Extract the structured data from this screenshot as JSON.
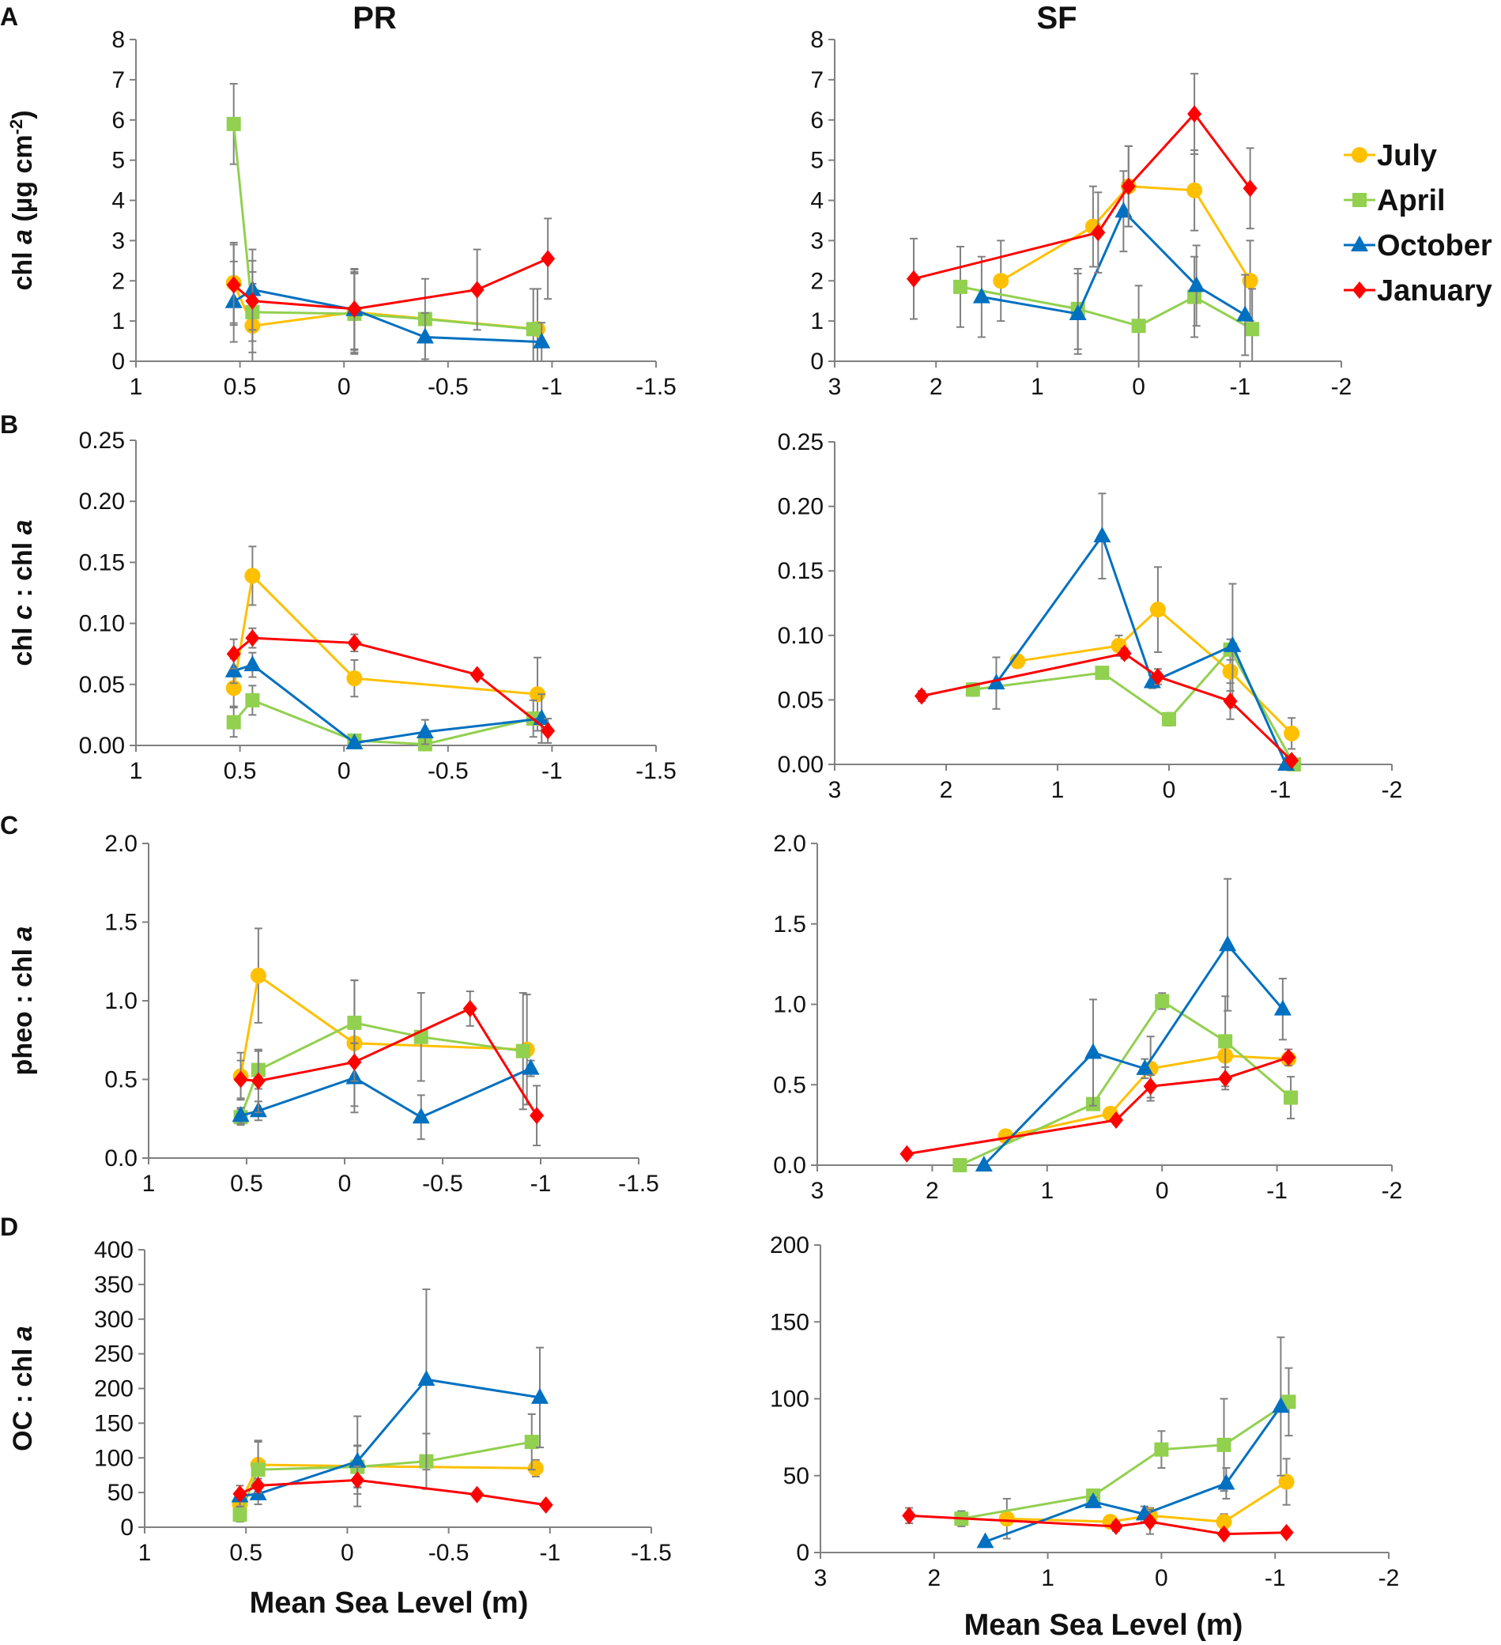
{
  "column_titles": [
    "PR",
    "SF"
  ],
  "panel_letters": [
    "A",
    "B",
    "C",
    "D"
  ],
  "x_axis_label": "Mean Sea Level (m)",
  "series_order": [
    "July",
    "April",
    "October",
    "January"
  ],
  "series_styles": {
    "July": {
      "color": "#FFC000",
      "marker": "circle"
    },
    "April": {
      "color": "#92D050",
      "marker": "square"
    },
    "October": {
      "color": "#0070C0",
      "marker": "triangle"
    },
    "January": {
      "color": "#FF0000",
      "marker": "diamond"
    }
  },
  "colors": {
    "errorbar": "#808080",
    "axis": "#808080",
    "text": "#111111"
  },
  "chart_data": [
    {
      "id": "A-PR",
      "type": "line",
      "row": "A",
      "site": "PR",
      "ylabel": "chl a (µg cm⁻²)",
      "ylabel_parts": [
        {
          "t": "chl "
        },
        {
          "t": "a",
          "i": true
        },
        {
          "t": " (µg cm"
        },
        {
          "t": "-2",
          "sup": true
        },
        {
          "t": ")"
        }
      ],
      "xlim": [
        1,
        -1.5
      ],
      "xticks": [
        1,
        0.5,
        0,
        -0.5,
        -1,
        -1.5
      ],
      "xticklabels": [
        "1",
        "0.5",
        "0",
        "-0.5",
        "-1",
        "-1.5"
      ],
      "ylim": [
        0,
        8
      ],
      "yticks": [
        0,
        1,
        2,
        3,
        4,
        5,
        6,
        7,
        8
      ],
      "yticklabels": [
        "0",
        "1",
        "2",
        "3",
        "4",
        "5",
        "6",
        "7",
        "8"
      ],
      "series": [
        {
          "name": "July",
          "x": [
            0.53,
            0.44,
            -0.05,
            -0.93
          ],
          "y": [
            1.95,
            0.88,
            1.22,
            0.8
          ],
          "err": [
            1.0,
            1.05,
            1.0,
            1.0
          ]
        },
        {
          "name": "April",
          "x": [
            0.53,
            0.44,
            -0.05,
            -0.39,
            -0.91
          ],
          "y": [
            5.9,
            1.22,
            1.18,
            1.05,
            0.8
          ],
          "err": [
            1.0,
            1.0,
            1.0,
            1.0,
            1.0
          ]
        },
        {
          "name": "October",
          "x": [
            0.53,
            0.44,
            -0.05,
            -0.39,
            -0.95
          ],
          "y": [
            1.48,
            1.78,
            1.28,
            0.6,
            0.48
          ],
          "err": [
            1.0,
            1.0,
            1.0,
            0.6,
            0.48
          ]
        },
        {
          "name": "January",
          "x": [
            0.53,
            0.44,
            -0.05,
            -0.64,
            -0.98
          ],
          "y": [
            1.9,
            1.5,
            1.3,
            1.78,
            2.55
          ],
          "err": [
            1.0,
            1.0,
            1.0,
            1.0,
            1.0
          ]
        }
      ]
    },
    {
      "id": "A-SF",
      "type": "line",
      "row": "A",
      "site": "SF",
      "xlim": [
        3,
        -2
      ],
      "xticks": [
        3,
        2,
        1,
        0,
        -1,
        -2
      ],
      "xticklabels": [
        "3",
        "2",
        "1",
        "0",
        "-1",
        "-2"
      ],
      "ylim": [
        0,
        8
      ],
      "yticks": [
        0,
        1,
        2,
        3,
        4,
        5,
        6,
        7,
        8
      ],
      "yticklabels": [
        "0",
        "1",
        "2",
        "3",
        "4",
        "5",
        "6",
        "7",
        "8"
      ],
      "series": [
        {
          "name": "July",
          "x": [
            1.36,
            0.45,
            0.1,
            -0.55,
            -1.1
          ],
          "y": [
            2.0,
            3.35,
            4.35,
            4.25,
            2.0
          ],
          "err": [
            1.0,
            1.0,
            1.0,
            1.0,
            1.0
          ]
        },
        {
          "name": "April",
          "x": [
            1.76,
            0.6,
            0.0,
            -0.55,
            -1.12
          ],
          "y": [
            1.85,
            1.3,
            0.88,
            1.6,
            0.8
          ],
          "err": [
            1.0,
            1.0,
            1.0,
            1.0,
            1.0
          ]
        },
        {
          "name": "October",
          "x": [
            1.55,
            0.6,
            0.15,
            -0.57,
            -1.05
          ],
          "y": [
            1.6,
            1.18,
            3.73,
            1.88,
            1.15
          ],
          "err": [
            1.0,
            1.0,
            1.0,
            1.0,
            1.0
          ]
        },
        {
          "name": "January",
          "x": [
            2.22,
            0.4,
            0.1,
            -0.55,
            -1.1
          ],
          "y": [
            2.05,
            3.2,
            4.35,
            6.15,
            4.3
          ],
          "err": [
            1.0,
            1.0,
            1.0,
            1.0,
            1.0
          ]
        }
      ]
    },
    {
      "id": "B-PR",
      "type": "line",
      "row": "B",
      "site": "PR",
      "ylabel": "chl c : chl a",
      "ylabel_parts": [
        {
          "t": "chl "
        },
        {
          "t": "c",
          "i": true
        },
        {
          "t": " : chl "
        },
        {
          "t": "a",
          "i": true
        }
      ],
      "xlim": [
        1,
        -1.5
      ],
      "xticks": [
        1,
        0.5,
        0,
        -0.5,
        -1,
        -1.5
      ],
      "xticklabels": [
        "1",
        "0.5",
        "0",
        "-0.5",
        "-1",
        "-1.5"
      ],
      "ylim": [
        0,
        0.25
      ],
      "yticks": [
        0,
        0.05,
        0.1,
        0.15,
        0.2,
        0.25
      ],
      "yticklabels": [
        "0.00",
        "0.05",
        "0.10",
        "0.15",
        "0.20",
        "0.25"
      ],
      "series": [
        {
          "name": "July",
          "x": [
            0.53,
            0.44,
            -0.05,
            -0.93
          ],
          "y": [
            0.047,
            0.139,
            0.055,
            0.042
          ],
          "err": [
            0.015,
            0.024,
            0.015,
            0.03
          ]
        },
        {
          "name": "April",
          "x": [
            0.53,
            0.44,
            -0.05,
            -0.39,
            -0.91
          ],
          "y": [
            0.019,
            0.037,
            0.004,
            0.001,
            0.022
          ],
          "err": [
            0.012,
            0.012,
            0.004,
            0.001,
            0.015
          ]
        },
        {
          "name": "October",
          "x": [
            0.53,
            0.44,
            -0.05,
            -0.39,
            -0.95
          ],
          "y": [
            0.061,
            0.066,
            0.002,
            0.011,
            0.022
          ],
          "err": [
            0.01,
            0.01,
            0.002,
            0.01,
            0.02
          ]
        },
        {
          "name": "January",
          "x": [
            0.53,
            0.44,
            -0.05,
            -0.64,
            -0.98
          ],
          "y": [
            0.075,
            0.088,
            0.084,
            0.058,
            0.012
          ],
          "err": [
            0.012,
            0.008,
            0.007,
            0.002,
            0.01
          ]
        }
      ]
    },
    {
      "id": "B-SF",
      "type": "line",
      "row": "B",
      "site": "SF",
      "xlim": [
        3,
        -2
      ],
      "xticks": [
        3,
        2,
        1,
        0,
        -1,
        -2
      ],
      "xticklabels": [
        "3",
        "2",
        "1",
        "0",
        "-1",
        "-2"
      ],
      "ylim": [
        0,
        0.25
      ],
      "yticks": [
        0,
        0.05,
        0.1,
        0.15,
        0.2,
        0.25
      ],
      "yticklabels": [
        "0.00",
        "0.05",
        "0.10",
        "0.15",
        "0.20",
        "0.25"
      ],
      "series": [
        {
          "name": "July",
          "x": [
            1.36,
            0.45,
            0.1,
            -0.55,
            -1.1
          ],
          "y": [
            0.08,
            0.092,
            0.12,
            0.072,
            0.024
          ],
          "err": [
            0.005,
            0.008,
            0.033,
            0.015,
            0.012
          ]
        },
        {
          "name": "April",
          "x": [
            1.76,
            0.6,
            0.0,
            -0.55,
            -1.12
          ],
          "y": [
            0.058,
            0.071,
            0.035,
            0.089,
            0.0
          ],
          "err": [
            0.005,
            0.004,
            0.005,
            0.008,
            0.002
          ]
        },
        {
          "name": "October",
          "x": [
            1.55,
            0.6,
            0.15,
            -0.57,
            -1.05
          ],
          "y": [
            0.063,
            0.177,
            0.064,
            0.092,
            0.0
          ],
          "err": [
            0.02,
            0.033,
            0.005,
            0.048,
            0.002
          ]
        },
        {
          "name": "January",
          "x": [
            2.22,
            0.4,
            0.1,
            -0.55,
            -1.1
          ],
          "y": [
            0.053,
            0.086,
            0.068,
            0.049,
            0.003
          ],
          "err": [
            0.004,
            0.004,
            0.006,
            0.014,
            0.003
          ]
        }
      ]
    },
    {
      "id": "C-PR",
      "type": "line",
      "row": "C",
      "site": "PR",
      "ylabel": "pheo : chl a",
      "ylabel_parts": [
        {
          "t": "pheo : chl "
        },
        {
          "t": "a",
          "i": true
        }
      ],
      "xlim": [
        1,
        -1.5
      ],
      "xticks": [
        1,
        0.5,
        0,
        -0.5,
        -1,
        -1.5
      ],
      "xticklabels": [
        "1",
        "0.5",
        "0",
        "-0.5",
        "-1",
        "-1.5"
      ],
      "ylim": [
        0,
        2
      ],
      "yticks": [
        0,
        0.5,
        1,
        1.5,
        2
      ],
      "yticklabels": [
        "0.0",
        "0.5",
        "1.0",
        "1.5",
        "2.0"
      ],
      "series": [
        {
          "name": "July",
          "x": [
            0.53,
            0.44,
            -0.05,
            -0.93
          ],
          "y": [
            0.52,
            1.16,
            0.73,
            0.69
          ],
          "err": [
            0.15,
            0.3,
            0.4,
            0.35
          ]
        },
        {
          "name": "April",
          "x": [
            0.53,
            0.44,
            -0.05,
            -0.39,
            -0.91
          ],
          "y": [
            0.26,
            0.56,
            0.86,
            0.77,
            0.68
          ],
          "err": [
            0.05,
            0.12,
            0.27,
            0.28,
            0.37
          ]
        },
        {
          "name": "October",
          "x": [
            0.53,
            0.44,
            -0.05,
            -0.39,
            -0.95
          ],
          "y": [
            0.27,
            0.3,
            0.51,
            0.26,
            0.57
          ],
          "err": [
            0.05,
            0.06,
            0.22,
            0.14,
            0.05
          ]
        },
        {
          "name": "January",
          "x": [
            0.53,
            0.44,
            -0.05,
            -0.64,
            -0.98
          ],
          "y": [
            0.5,
            0.49,
            0.61,
            0.95,
            0.27
          ],
          "err": [
            0.12,
            0.2,
            0.12,
            0.11,
            0.19
          ]
        }
      ]
    },
    {
      "id": "C-SF",
      "type": "line",
      "row": "C",
      "site": "SF",
      "xlim": [
        3,
        -2
      ],
      "xticks": [
        3,
        2,
        1,
        0,
        -1,
        -2
      ],
      "xticklabels": [
        "3",
        "2",
        "1",
        "0",
        "-1",
        "-2"
      ],
      "ylim": [
        0,
        2
      ],
      "yticks": [
        0,
        0.5,
        1,
        1.5,
        2
      ],
      "yticklabels": [
        "0.0",
        "0.5",
        "1.0",
        "1.5",
        "2.0"
      ],
      "series": [
        {
          "name": "July",
          "x": [
            1.36,
            0.45,
            0.1,
            -0.55,
            -1.1
          ],
          "y": [
            0.18,
            0.32,
            0.6,
            0.68,
            0.66
          ],
          "err": [
            0.02,
            0.03,
            0.2,
            0.12,
            0.04
          ]
        },
        {
          "name": "April",
          "x": [
            1.76,
            0.6,
            0.0,
            -0.55,
            -1.12
          ],
          "y": [
            0.0,
            0.38,
            1.02,
            0.77,
            0.42
          ],
          "err": [
            0.01,
            0.03,
            0.05,
            0.28,
            0.13
          ]
        },
        {
          "name": "October",
          "x": [
            1.55,
            0.6,
            0.15,
            -0.57,
            -1.05
          ],
          "y": [
            0.0,
            0.7,
            0.6,
            1.37,
            0.97
          ],
          "err": [
            0.01,
            0.33,
            0.06,
            0.41,
            0.19
          ]
        },
        {
          "name": "January",
          "x": [
            2.22,
            0.4,
            0.1,
            -0.55,
            -1.1
          ],
          "y": [
            0.07,
            0.28,
            0.49,
            0.54,
            0.67
          ],
          "err": [
            0.01,
            0.02,
            0.07,
            0.07,
            0.05
          ]
        }
      ]
    },
    {
      "id": "D-PR",
      "type": "line",
      "row": "D",
      "site": "PR",
      "ylabel": "OC : chl a",
      "ylabel_parts": [
        {
          "t": "OC : chl "
        },
        {
          "t": "a",
          "i": true
        }
      ],
      "xlim": [
        1,
        -1.5
      ],
      "xticks": [
        1,
        0.5,
        0,
        -0.5,
        -1,
        -1.5
      ],
      "xticklabels": [
        "1",
        "0.5",
        "0",
        "-0.5",
        "-1",
        "-1.5"
      ],
      "ylim": [
        0,
        400
      ],
      "yticks": [
        0,
        50,
        100,
        150,
        200,
        250,
        300,
        350,
        400
      ],
      "yticklabels": [
        "0",
        "50",
        "100",
        "150",
        "200",
        "250",
        "300",
        "350",
        "400"
      ],
      "series": [
        {
          "name": "July",
          "x": [
            0.53,
            0.44,
            -0.05,
            -0.93
          ],
          "y": [
            33,
            90,
            88,
            85
          ],
          "err": [
            15,
            35,
            30,
            12
          ]
        },
        {
          "name": "April",
          "x": [
            0.53,
            0.44,
            -0.05,
            -0.39,
            -0.91
          ],
          "y": [
            18,
            83,
            87,
            95,
            123
          ],
          "err": [
            10,
            40,
            30,
            40,
            40
          ]
        },
        {
          "name": "October",
          "x": [
            0.53,
            0.44,
            -0.05,
            -0.39,
            -0.95
          ],
          "y": [
            45,
            48,
            95,
            213,
            187
          ],
          "err": [
            15,
            15,
            65,
            130,
            72
          ]
        },
        {
          "name": "January",
          "x": [
            0.53,
            0.44,
            -0.05,
            -0.64,
            -0.98
          ],
          "y": [
            48,
            60,
            68,
            47,
            32
          ],
          "err": [
            5,
            10,
            20,
            5,
            3
          ]
        }
      ]
    },
    {
      "id": "D-SF",
      "type": "line",
      "row": "D",
      "site": "SF",
      "xlim": [
        3,
        -2
      ],
      "xticks": [
        3,
        2,
        1,
        0,
        -1,
        -2
      ],
      "xticklabels": [
        "3",
        "2",
        "1",
        "0",
        "-1",
        "-2"
      ],
      "ylim": [
        0,
        200
      ],
      "yticks": [
        0,
        50,
        100,
        150,
        200
      ],
      "yticklabels": [
        "0",
        "50",
        "100",
        "150",
        "200"
      ],
      "series": [
        {
          "name": "July",
          "x": [
            1.36,
            0.45,
            0.1,
            -0.55,
            -1.1
          ],
          "y": [
            22,
            20,
            24,
            20,
            46
          ],
          "err": [
            13,
            3,
            5,
            5,
            15
          ]
        },
        {
          "name": "April",
          "x": [
            1.76,
            0.6,
            0.0,
            -0.55,
            -1.12
          ],
          "y": [
            22,
            37,
            67,
            70,
            98
          ],
          "err": [
            5,
            3,
            12,
            30,
            22
          ]
        },
        {
          "name": "October",
          "x": [
            1.55,
            0.6,
            0.15,
            -0.57,
            -1.05
          ],
          "y": [
            7,
            33,
            25,
            45,
            95
          ],
          "err": [
            1,
            3,
            5,
            10,
            45
          ]
        },
        {
          "name": "January",
          "x": [
            2.22,
            0.4,
            0.1,
            -0.55,
            -1.1
          ],
          "y": [
            24,
            17,
            20,
            12,
            13
          ],
          "err": [
            5,
            3,
            8,
            2,
            2
          ]
        }
      ]
    }
  ]
}
